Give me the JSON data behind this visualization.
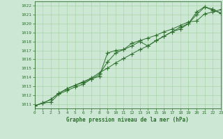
{
  "title": "Graphe pression niveau de la mer (hPa)",
  "background_color": "#cce8d4",
  "grid_color": "#aad4aa",
  "line_color": "#2d6e2d",
  "marker_color": "#2d6e2d",
  "xlim": [
    0,
    23
  ],
  "ylim": [
    1010.5,
    1022.5
  ],
  "yticks": [
    1011,
    1012,
    1013,
    1014,
    1015,
    1016,
    1017,
    1018,
    1019,
    1020,
    1021,
    1022
  ],
  "xticks": [
    0,
    1,
    2,
    3,
    4,
    5,
    6,
    7,
    8,
    9,
    10,
    11,
    12,
    13,
    14,
    15,
    16,
    17,
    18,
    19,
    20,
    21,
    22,
    23
  ],
  "line1": [
    1010.8,
    1011.1,
    1011.2,
    1012.1,
    1012.5,
    1012.9,
    1013.2,
    1013.8,
    1014.1,
    1016.7,
    1017.0,
    1017.1,
    1017.5,
    1018.0,
    1017.5,
    1018.1,
    1018.6,
    1019.1,
    1019.4,
    1020.0,
    1021.0,
    1021.85,
    1021.65,
    1021.2
  ],
  "line2": [
    1010.8,
    1011.1,
    1011.5,
    1012.2,
    1012.7,
    1013.1,
    1013.4,
    1013.8,
    1014.3,
    1015.7,
    1016.7,
    1017.1,
    1017.8,
    1018.1,
    1018.4,
    1018.7,
    1019.1,
    1019.4,
    1019.8,
    1020.2,
    1020.3,
    1021.1,
    1021.3,
    1021.6
  ],
  "line3": [
    1010.8,
    1011.1,
    1011.5,
    1012.2,
    1012.7,
    1013.1,
    1013.5,
    1013.9,
    1014.5,
    1015.0,
    1015.6,
    1016.1,
    1016.6,
    1017.1,
    1017.5,
    1018.1,
    1018.6,
    1019.1,
    1019.6,
    1020.0,
    1021.3,
    1021.9,
    1021.5,
    1021.2
  ]
}
